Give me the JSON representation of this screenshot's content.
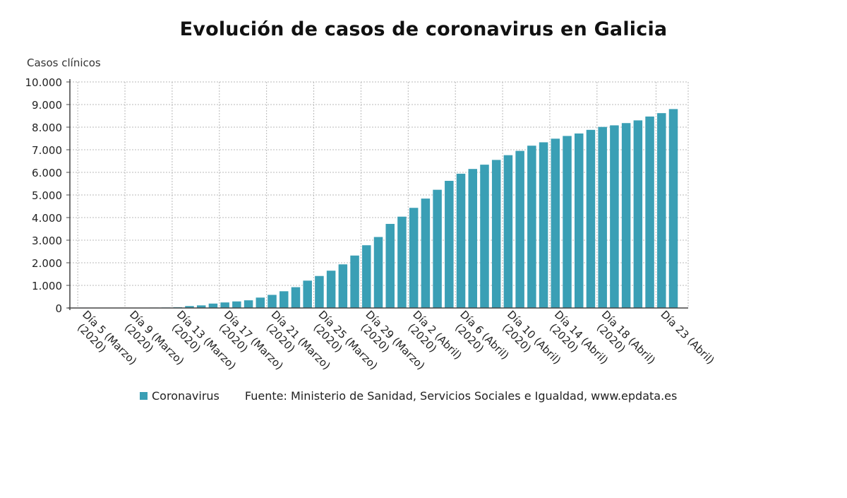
{
  "chart_data": {
    "type": "bar",
    "title": "Evolución de casos de coronavirus en Galicia",
    "ylabel": "Casos clínicos",
    "xlabel": "",
    "ylim": [
      0,
      10000
    ],
    "yticks": [
      0,
      1000,
      2000,
      3000,
      4000,
      5000,
      6000,
      7000,
      8000,
      9000,
      10000
    ],
    "ytick_labels": [
      "0",
      "1.000",
      "2.000",
      "3.000",
      "4.000",
      "5.000",
      "6.000",
      "7.000",
      "8.000",
      "9.000",
      "10.000"
    ],
    "xtick_labels": [
      {
        "index": 0,
        "line1": "Día 5 (Marzo)",
        "line2": "(2020)"
      },
      {
        "index": 4,
        "line1": "Día 9 (Marzo)",
        "line2": "(2020)"
      },
      {
        "index": 8,
        "line1": "Día 13 (Marzo)",
        "line2": "(2020)"
      },
      {
        "index": 12,
        "line1": "Día 17 (Marzo)",
        "line2": "(2020)"
      },
      {
        "index": 16,
        "line1": "Día 21 (Marzo)",
        "line2": "(2020)"
      },
      {
        "index": 20,
        "line1": "Día 25 (Marzo)",
        "line2": "(2020)"
      },
      {
        "index": 24,
        "line1": "Día 29 (Marzo)",
        "line2": "(2020)"
      },
      {
        "index": 28,
        "line1": "Día 2 (Abril)",
        "line2": "(2020)"
      },
      {
        "index": 32,
        "line1": "Día 6 (Abril)",
        "line2": "(2020)"
      },
      {
        "index": 36,
        "line1": "Día 10 (Abril)",
        "line2": "(2020)"
      },
      {
        "index": 40,
        "line1": "Día 14 (Abril)",
        "line2": "(2020)"
      },
      {
        "index": 44,
        "line1": "Día 18 (Abril)",
        "line2": "(2020)"
      },
      {
        "index": 49,
        "line1": "Día 23 (Abril)",
        "line2": ""
      }
    ],
    "series": [
      {
        "name": "Coronavirus",
        "color": "#3a9fb5",
        "values": [
          2,
          3,
          5,
          6,
          10,
          15,
          18,
          22,
          35,
          85,
          115,
          195,
          245,
          290,
          340,
          460,
          580,
          740,
          920,
          1210,
          1415,
          1650,
          1930,
          2320,
          2775,
          3140,
          3720,
          4040,
          4430,
          4840,
          5230,
          5625,
          5940,
          6150,
          6340,
          6550,
          6760,
          6950,
          7180,
          7330,
          7490,
          7610,
          7720,
          7880,
          8010,
          8080,
          8180,
          8300,
          8470,
          8620,
          8800
        ]
      }
    ],
    "grid": true,
    "legend_position": "bottom-left"
  },
  "legend": {
    "label": "Coronavirus",
    "source": "Fuente: Ministerio de Sanidad, Servicios Sociales e Igualdad, www.epdata.es"
  }
}
